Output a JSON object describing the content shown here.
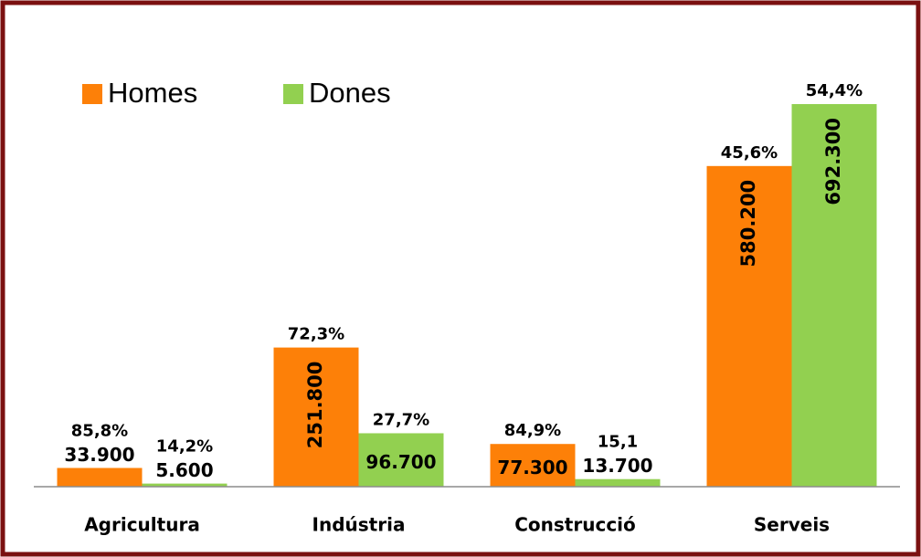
{
  "chart_data": {
    "type": "bar",
    "categories": [
      "Agricultura",
      "Indústria",
      "Construcció",
      "Serveis"
    ],
    "series": [
      {
        "name": "Homes",
        "color": "#fd8008",
        "values": [
          33900,
          251800,
          77300,
          580200
        ],
        "value_labels": [
          "33.900",
          "251.800",
          "77.300",
          "580.200"
        ],
        "annotations": [
          "85,8%",
          "72,3%",
          "84,9%",
          "45,6%"
        ]
      },
      {
        "name": "Dones",
        "color": "#92d050",
        "values": [
          5600,
          96700,
          13700,
          692300
        ],
        "value_labels": [
          "5.600",
          "96.700",
          "13.700",
          "692.300"
        ],
        "annotations": [
          "14,2%",
          "27,7%",
          "15,1",
          "54,4%"
        ]
      }
    ],
    "ylim": [
      0,
      760000
    ],
    "legend": "top-left"
  }
}
